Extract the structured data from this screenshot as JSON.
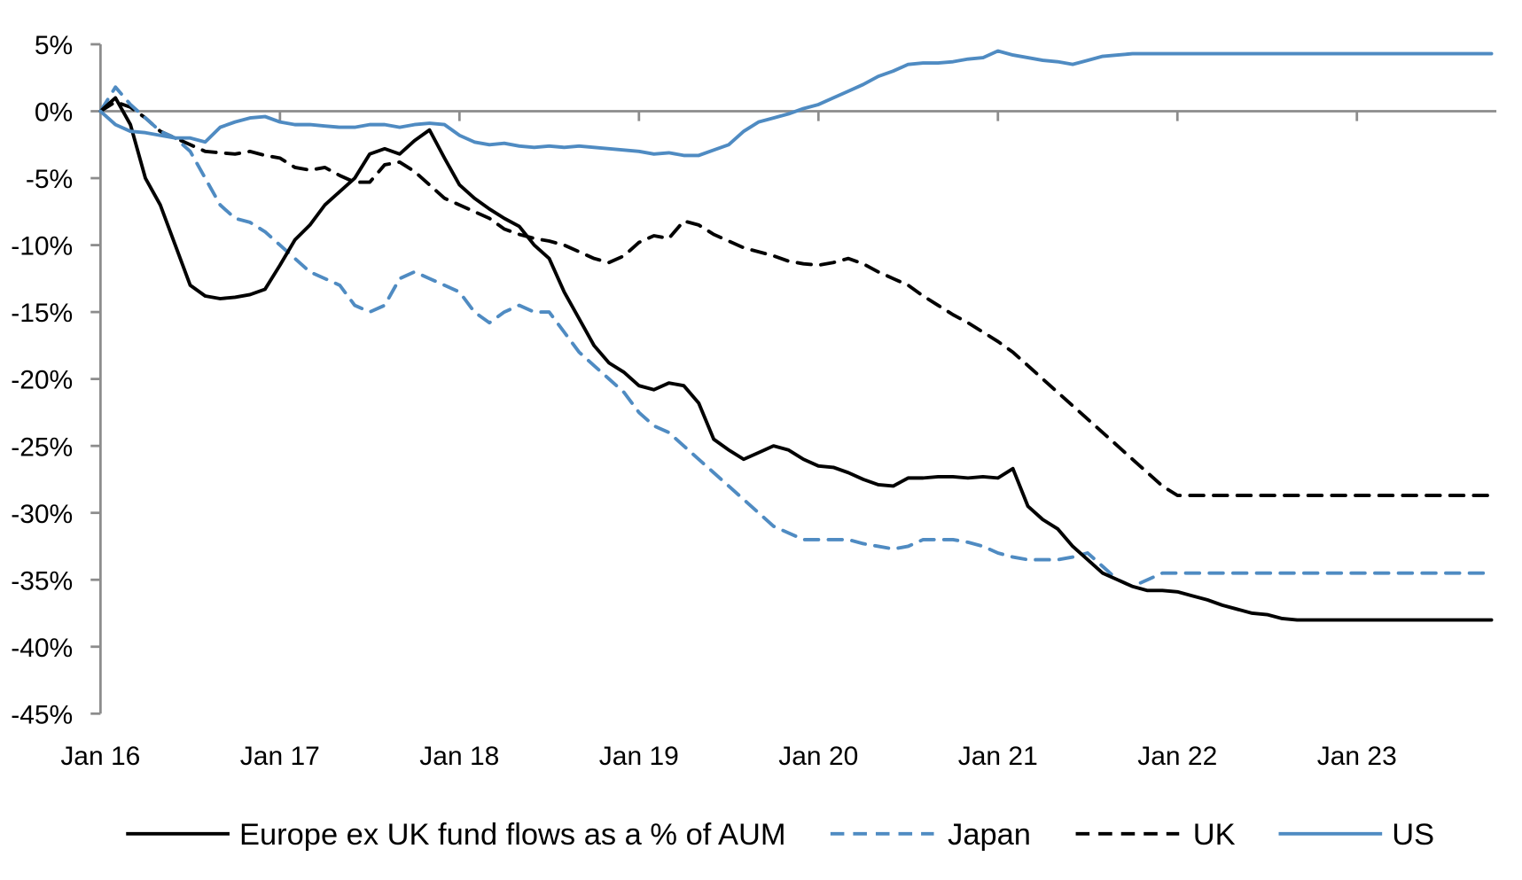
{
  "chart_data": {
    "type": "line",
    "title": "",
    "xlabel": "",
    "ylabel": "",
    "ylim": [
      -45,
      5
    ],
    "y_ticks": [
      5,
      0,
      -5,
      -10,
      -15,
      -20,
      -25,
      -30,
      -35,
      -40,
      -45
    ],
    "y_tick_labels": [
      "5%",
      "0%",
      "-5%",
      "-10%",
      "-15%",
      "-20%",
      "-25%",
      "-30%",
      "-35%",
      "-40%",
      "-45%"
    ],
    "x_tick_labels": [
      "Jan 16",
      "Jan 17",
      "Jan 18",
      "Jan 19",
      "Jan 20",
      "Jan 21",
      "Jan 22",
      "Jan 23"
    ],
    "x_unit": "months since Jan 2016",
    "x_range": [
      0,
      93
    ],
    "grid": false,
    "legend_position": "bottom",
    "x": [
      0,
      1,
      2,
      3,
      4,
      5,
      6,
      7,
      8,
      9,
      10,
      11,
      12,
      13,
      14,
      15,
      16,
      17,
      18,
      19,
      20,
      21,
      22,
      23,
      24,
      25,
      26,
      27,
      28,
      29,
      30,
      31,
      32,
      33,
      34,
      35,
      36,
      37,
      38,
      39,
      40,
      41,
      42,
      43,
      44,
      45,
      46,
      47,
      48,
      49,
      50,
      51,
      52,
      53,
      54,
      55,
      56,
      57,
      58,
      59,
      60,
      61,
      62,
      63,
      64,
      65,
      66,
      67,
      68,
      69,
      70,
      71,
      72,
      73,
      74,
      75,
      76,
      77,
      78,
      79,
      80,
      81,
      82,
      83,
      84,
      85,
      86,
      87,
      88,
      89,
      90,
      91,
      92,
      93
    ],
    "series": [
      {
        "name": "Europe ex UK fund flows as a % of AUM",
        "color": "#000000",
        "dash": "solid",
        "values": [
          0,
          1,
          -1,
          -5,
          -7,
          -10,
          -13,
          -13.8,
          -14,
          -13.9,
          -13.7,
          -13.3,
          -11.5,
          -9.6,
          -8.5,
          -7,
          -6,
          -5,
          -3.2,
          -2.8,
          -3.2,
          -2.2,
          -1.4,
          -3.5,
          -5.5,
          -6.5,
          -7.3,
          -8,
          -8.6,
          -10,
          -11,
          -13.5,
          -15.5,
          -17.5,
          -18.8,
          -19.5,
          -20.5,
          -20.8,
          -20.3,
          -20.5,
          -21.8,
          -24.5,
          -25.3,
          -26,
          -25.5,
          -25,
          -25.3,
          -26,
          -26.5,
          -26.6,
          -27,
          -27.5,
          -27.9,
          -28,
          -27.4,
          -27.4,
          -27.3,
          -27.3,
          -27.4,
          -27.3,
          -27.4,
          -26.7,
          -29.5,
          -30.5,
          -31.2,
          -32.5,
          -33.5,
          -34.5,
          -35,
          -35.5,
          -35.8,
          -35.8,
          -35.9,
          -36.2,
          -36.5,
          -36.9,
          -37.2,
          -37.5,
          -37.6,
          -37.9,
          -38,
          -38,
          -38,
          -38,
          -38,
          -38,
          -38,
          -38,
          -38,
          -38,
          -38,
          -38,
          -38,
          -38
        ]
      },
      {
        "name": "Japan",
        "color": "#4f8bc2",
        "dash": "dashed",
        "values": [
          0,
          1.8,
          0.5,
          -0.5,
          -1.5,
          -2,
          -3,
          -5,
          -7,
          -8,
          -8.3,
          -9,
          -10,
          -11,
          -12,
          -12.5,
          -13,
          -14.5,
          -15,
          -14.5,
          -12.5,
          -12,
          -12.5,
          -13,
          -13.5,
          -15,
          -15.8,
          -15,
          -14.5,
          -15,
          -15,
          -16.5,
          -18,
          -19,
          -20,
          -21,
          -22.5,
          -23.5,
          -24,
          -25,
          -26,
          -27,
          -28,
          -29,
          -30,
          -31,
          -31.5,
          -32,
          -32,
          -32,
          -32,
          -32.3,
          -32.5,
          -32.7,
          -32.5,
          -32,
          -32,
          -32,
          -32.2,
          -32.5,
          -33,
          -33.3,
          -33.5,
          -33.5,
          -33.5,
          -33.3,
          -33,
          -34,
          -35,
          -35.5,
          -35,
          -34.5,
          -34.5,
          -34.5,
          -34.5,
          -34.5,
          -34.5,
          -34.5,
          -34.5,
          -34.5,
          -34.5,
          -34.5,
          -34.5,
          -34.5,
          -34.5,
          -34.5,
          -34.5,
          -34.5,
          -34.5,
          -34.5,
          -34.5,
          -34.5,
          -34.5,
          -34.5
        ]
      },
      {
        "name": "UK",
        "color": "#000000",
        "dash": "dashed",
        "values": [
          0,
          0.7,
          0.3,
          -0.5,
          -1.5,
          -2,
          -2.5,
          -3,
          -3.1,
          -3.2,
          -3,
          -3.3,
          -3.5,
          -4.2,
          -4.4,
          -4.2,
          -4.8,
          -5.3,
          -5.3,
          -4,
          -3.8,
          -4.5,
          -5.5,
          -6.5,
          -7,
          -7.5,
          -8,
          -8.8,
          -9.2,
          -9.5,
          -9.7,
          -10,
          -10.5,
          -11,
          -11.3,
          -10.8,
          -9.8,
          -9.3,
          -9.5,
          -8.2,
          -8.5,
          -9.2,
          -9.7,
          -10.2,
          -10.5,
          -10.8,
          -11.2,
          -11.4,
          -11.5,
          -11.3,
          -11,
          -11.4,
          -12,
          -12.5,
          -13,
          -13.8,
          -14.5,
          -15.2,
          -15.8,
          -16.5,
          -17.2,
          -18,
          -19,
          -20,
          -21,
          -22,
          -23,
          -24,
          -25,
          -26,
          -27,
          -28,
          -28.7,
          -28.7,
          -28.7,
          -28.7,
          -28.7,
          -28.7,
          -28.7,
          -28.7,
          -28.7,
          -28.7,
          -28.7,
          -28.7,
          -28.7,
          -28.7,
          -28.7,
          -28.7,
          -28.7,
          -28.7,
          -28.7,
          -28.7,
          -28.7,
          -28.7
        ]
      },
      {
        "name": "US",
        "color": "#4f8bc2",
        "dash": "solid",
        "values": [
          0,
          -1,
          -1.5,
          -1.6,
          -1.8,
          -2,
          -2,
          -2.3,
          -1.2,
          -0.8,
          -0.5,
          -0.4,
          -0.8,
          -1,
          -1,
          -1.1,
          -1.2,
          -1.2,
          -1,
          -1,
          -1.2,
          -1,
          -0.9,
          -1,
          -1.8,
          -2.3,
          -2.5,
          -2.4,
          -2.6,
          -2.7,
          -2.6,
          -2.7,
          -2.6,
          -2.7,
          -2.8,
          -2.9,
          -3,
          -3.2,
          -3.1,
          -3.3,
          -3.3,
          -2.9,
          -2.5,
          -1.5,
          -0.8,
          -0.5,
          -0.2,
          0.2,
          0.5,
          1,
          1.5,
          2,
          2.6,
          3,
          3.5,
          3.6,
          3.6,
          3.7,
          3.9,
          4,
          4.5,
          4.2,
          4,
          3.8,
          3.7,
          3.5,
          3.8,
          4.1,
          4.2,
          4.3,
          4.3,
          4.3,
          4.3,
          4.3,
          4.3,
          4.3,
          4.3,
          4.3,
          4.3,
          4.3,
          4.3,
          4.3,
          4.3,
          4.3,
          4.3,
          4.3,
          4.3,
          4.3,
          4.3,
          4.3,
          4.3,
          4.3,
          4.3,
          4.3
        ]
      }
    ]
  },
  "legend": {
    "items": [
      {
        "label": "Europe ex UK fund flows as a % of AUM"
      },
      {
        "label": "Japan"
      },
      {
        "label": "UK"
      },
      {
        "label": "US"
      }
    ]
  }
}
